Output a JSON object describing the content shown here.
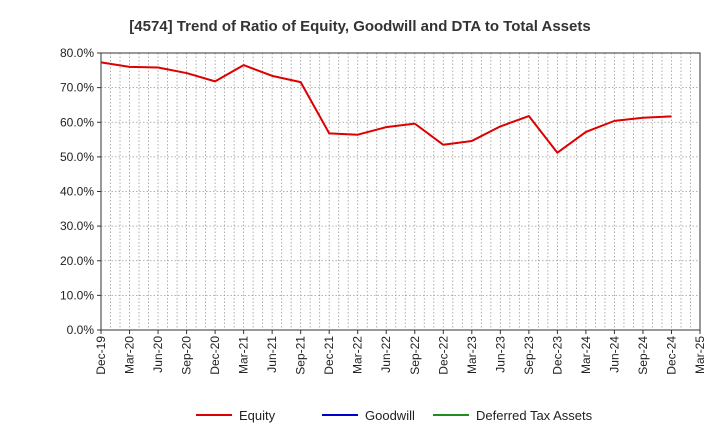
{
  "chart_data": {
    "type": "line",
    "title": "[4574]  Trend of Ratio of Equity, Goodwill and DTA to Total Assets",
    "xlabel": "",
    "ylabel": "",
    "ylim": [
      0,
      80
    ],
    "y_ticks": [
      0,
      10,
      20,
      30,
      40,
      50,
      60,
      70,
      80
    ],
    "y_tick_labels": [
      "0.0%",
      "10.0%",
      "20.0%",
      "30.0%",
      "40.0%",
      "50.0%",
      "60.0%",
      "70.0%",
      "80.0%"
    ],
    "x_tick_labels": [
      "Dec-19",
      "Mar-20",
      "Jun-20",
      "Sep-20",
      "Dec-20",
      "Mar-21",
      "Jun-21",
      "Sep-21",
      "Dec-21",
      "Mar-22",
      "Jun-22",
      "Sep-22",
      "Dec-22",
      "Mar-23",
      "Jun-23",
      "Sep-23",
      "Dec-23",
      "Mar-24",
      "Jun-24",
      "Sep-24",
      "Dec-24",
      "Mar-25"
    ],
    "grid": true,
    "legend_position": "bottom",
    "series": [
      {
        "name": "Equity",
        "color": "#dd0000",
        "values": [
          77.3,
          76.0,
          75.8,
          74.2,
          71.8,
          76.5,
          73.4,
          71.6,
          56.8,
          56.4,
          58.6,
          59.6,
          53.5,
          54.6,
          58.8,
          61.8,
          51.2,
          57.2,
          60.4,
          61.3,
          61.7,
          null
        ]
      },
      {
        "name": "Goodwill",
        "color": "#0000cc",
        "values": []
      },
      {
        "name": "Deferred Tax Assets",
        "color": "#228b22",
        "values": []
      }
    ]
  }
}
